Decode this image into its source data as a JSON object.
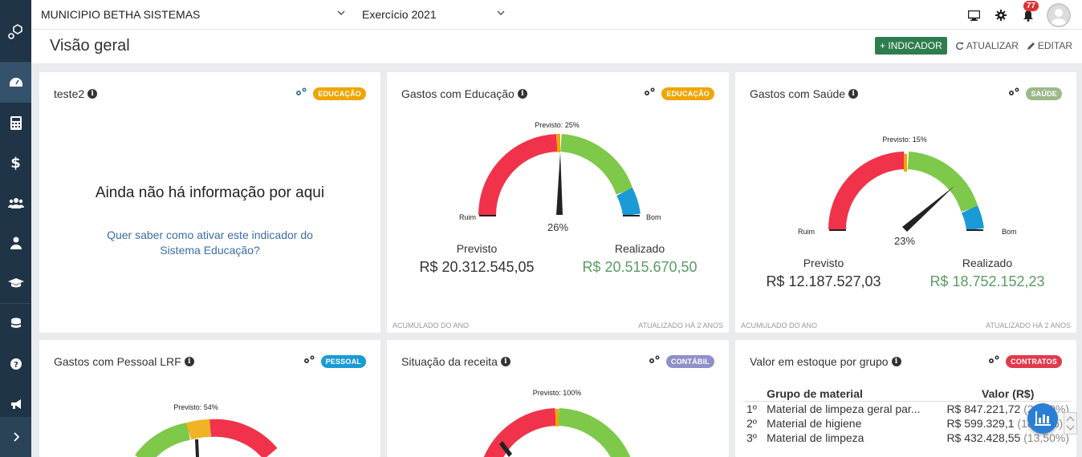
{
  "topbar": {
    "entity": "MUNICIPIO BETHA SISTEMAS",
    "exercise": "Exercício 2021",
    "notification_count": "77",
    "icons": [
      "monitor-icon",
      "gear-icon",
      "bell-icon",
      "avatar"
    ]
  },
  "header": {
    "title": "Visão geral",
    "add_indicator": "+ INDICADOR",
    "refresh": "ATUALIZAR",
    "edit": "EDITAR"
  },
  "sidebar": {
    "items": [
      "dashboard-icon",
      "calculator-icon",
      "dollar-icon",
      "users-icon",
      "user-tie-icon",
      "graduation-cap-icon",
      "database-icon",
      "help-icon",
      "megaphone-icon",
      "chevron-right-icon"
    ]
  },
  "cards": {
    "teste2": {
      "title": "teste2",
      "tag": "EDUCAÇÃO",
      "tag_color": "#f0a500",
      "empty_title": "Ainda não há informação por aqui",
      "empty_link": "Quer saber como ativar este indicador do Sistema Educação?"
    },
    "educacao": {
      "title": "Gastos com Educação",
      "tag": "EDUCAÇÃO",
      "tag_color": "#f0a500",
      "gauge": {
        "previsto_label": "Previsto: 25%",
        "value_label": "26%",
        "left": "Ruim",
        "right": "Bom",
        "needle_fraction": 0.52,
        "marker_fraction": 0.5
      },
      "previsto_label": "Previsto",
      "previsto_value": "R$ 20.312.545,05",
      "realizado_label": "Realizado",
      "realizado_value": "R$ 20.515.670,50",
      "footer_left": "ACUMULADO DO ANO",
      "footer_right": "ATUALIZADO HÁ 2 ANOS"
    },
    "saude": {
      "title": "Gastos com Saúde",
      "tag": "SAÚDE",
      "tag_color": "#9db88a",
      "gauge": {
        "previsto_label": "Previsto: 15%",
        "value_label": "23%",
        "left": "Ruim",
        "right": "Bom",
        "needle_fraction": 0.78,
        "marker_fraction": 0.5
      },
      "previsto_label": "Previsto",
      "previsto_value": "R$ 12.187.527,03",
      "realizado_label": "Realizado",
      "realizado_value": "R$ 18.752.152,23",
      "footer_left": "ACUMULADO DO ANO",
      "footer_right": "ATUALIZADO HÁ 2 ANOS"
    },
    "pessoal": {
      "title": "Gastos com Pessoal LRF",
      "tag": "PESSOAL",
      "tag_color": "#1a9ad6",
      "gauge": {
        "previsto_label": "Previsto: 54%"
      }
    },
    "receita": {
      "title": "Situação da receita",
      "tag": "CONTÁBIL",
      "tag_color": "#8f8fc9",
      "gauge": {
        "previsto_label": "Previsto: 100%"
      }
    },
    "estoque": {
      "title": "Valor em estoque por grupo",
      "tag": "CONTRATOS",
      "tag_color": "#e2394d",
      "columns": [
        "Grupo de material",
        "Valor (R$)"
      ],
      "rows": [
        {
          "rank": "1º",
          "group": "Material de limpeza geral par...",
          "value": "R$ 847.221,72",
          "pct": "(26,40%)"
        },
        {
          "rank": "2º",
          "group": "Material de higiene",
          "value": "R$ 599.329,1",
          "pct": "(18,70%)"
        },
        {
          "rank": "3º",
          "group": "Material de limpeza",
          "value": "R$ 432.428,55",
          "pct": "(13,50%)"
        }
      ]
    }
  },
  "colors": {
    "sidebar": "#1f3446",
    "primary_btn": "#2e7d4f",
    "gauge_bad": "#f0334a",
    "gauge_good": "#7ec84a",
    "gauge_excellent": "#1a9ad6",
    "marker": "#f0a500"
  }
}
